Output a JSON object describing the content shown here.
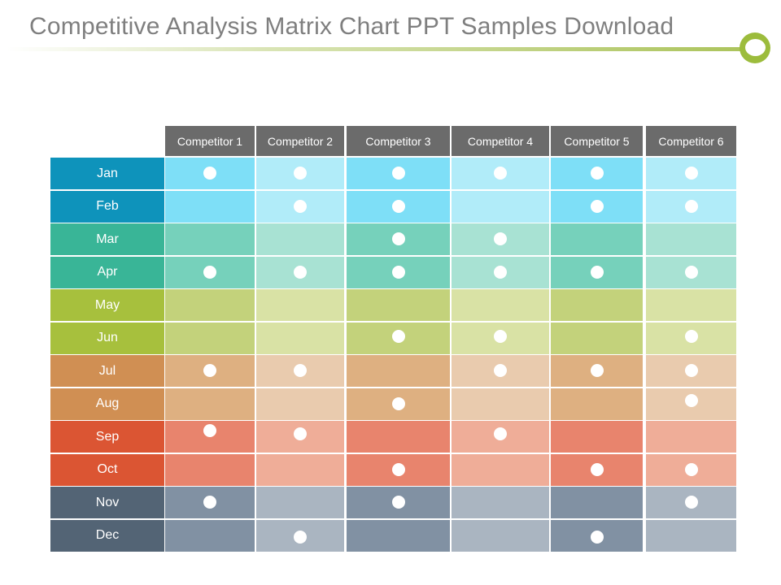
{
  "title": "Competitive Analysis Matrix Chart PPT Samples Download",
  "competitors": [
    "Competitor 1",
    "Competitor 2",
    "Competitor 3",
    "Competitor 4",
    "Competitor 5",
    "Competitor 6"
  ],
  "months": [
    {
      "label": "Jan",
      "marks": [
        1,
        1,
        1,
        1,
        1,
        1
      ]
    },
    {
      "label": "Feb",
      "marks": [
        0,
        1,
        1,
        0,
        1,
        1
      ]
    },
    {
      "label": "Mar",
      "marks": [
        0,
        0,
        1,
        1,
        0,
        0
      ]
    },
    {
      "label": "Apr",
      "marks": [
        1,
        1,
        1,
        1,
        1,
        1
      ]
    },
    {
      "label": "May",
      "marks": [
        0,
        0,
        0,
        0,
        0,
        0
      ]
    },
    {
      "label": "Jun",
      "marks": [
        0,
        0,
        1,
        1,
        0,
        1
      ]
    },
    {
      "label": "Jul",
      "marks": [
        1,
        1,
        0,
        1,
        1,
        1
      ]
    },
    {
      "label": "Aug",
      "marks": [
        0,
        0,
        1,
        0,
        0,
        1
      ]
    },
    {
      "label": "Sep",
      "marks": [
        1,
        1,
        0,
        1,
        0,
        0
      ]
    },
    {
      "label": "Oct",
      "marks": [
        0,
        0,
        1,
        0,
        1,
        1
      ]
    },
    {
      "label": "Nov",
      "marks": [
        1,
        0,
        1,
        0,
        0,
        1
      ]
    },
    {
      "label": "Dec",
      "marks": [
        0,
        1,
        0,
        0,
        1,
        0
      ]
    }
  ],
  "colors": {
    "header": "#6b6b6b",
    "month_label": [
      "#0e93bb",
      "#0e93bb",
      "#39b597",
      "#39b597",
      "#a7c03d",
      "#a7c03d",
      "#d08f53",
      "#d08f53",
      "#db5533",
      "#db5533",
      "#536475",
      "#536475"
    ],
    "cell_dark": [
      "#7edff7",
      "#7edff7",
      "#76d1bb",
      "#76d1bb",
      "#c3d27b",
      "#c3d27b",
      "#deb081",
      "#deb081",
      "#e8846d",
      "#e8846d",
      "#8191a3",
      "#8191a3"
    ],
    "cell_light": [
      "#b1ecf9",
      "#b1ecf9",
      "#a8e2d3",
      "#a8e2d3",
      "#d9e2a5",
      "#d9e2a5",
      "#e9cbae",
      "#e9cbae",
      "#efad98",
      "#efad98",
      "#aab5c1",
      "#aab5c1"
    ]
  }
}
